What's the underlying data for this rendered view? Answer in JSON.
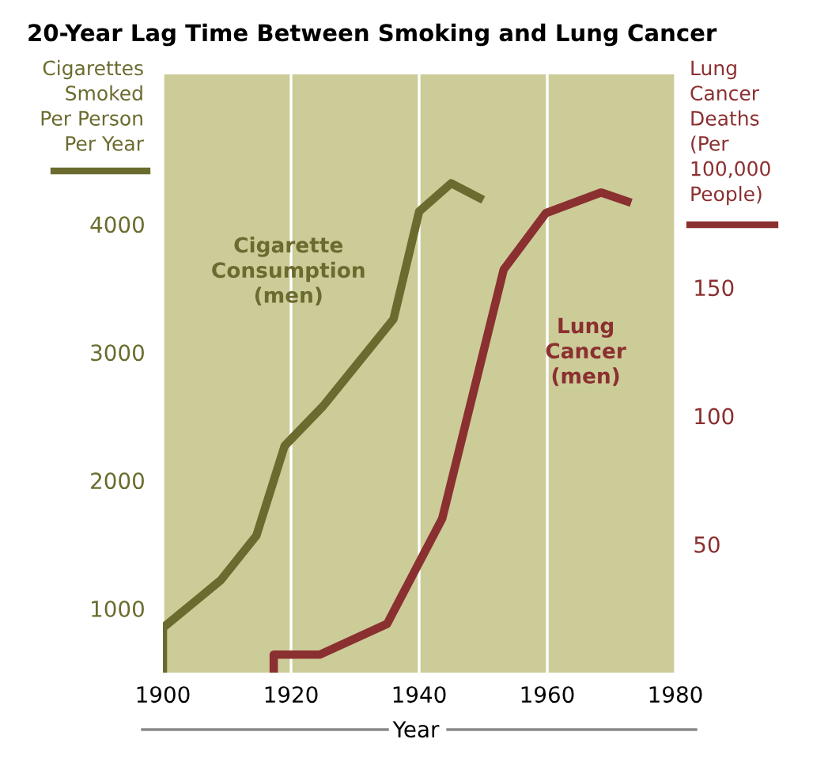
{
  "chart_data": {
    "type": "line",
    "title": "20-Year Lag Time Between Smoking and Lung Cancer",
    "xlabel": "Year",
    "ylabel": "Cigarettes Smoked Per Person Per Year",
    "y2label": "Lung Cancer Deaths (Per 100,000 People)",
    "series": [
      {
        "name": "Cigarette Consumption (men)",
        "color": "#6b6b2f",
        "x": [
          1900,
          1900,
          1909,
          1914.6,
          1919,
          1925,
          1936,
          1940,
          1945,
          1950
        ],
        "values": [
          500,
          850,
          1220,
          1570,
          2270,
          2580,
          3260,
          4100,
          4320,
          4190
        ]
      },
      {
        "name": "Lung Cancer (men)",
        "color": "#8b3030",
        "axis": "y2",
        "x": [
          1917.3,
          1917.3,
          1924.5,
          1935,
          1943.6,
          1953.2,
          1959.8,
          1968.4,
          1973.1
        ],
        "values": [
          0,
          7,
          7,
          19,
          60,
          157,
          179,
          187,
          183
        ]
      }
    ],
    "xlim": [
      1900,
      1980
    ],
    "xticks": [
      1900,
      1920,
      1940,
      1960,
      1980
    ],
    "ylim": [
      500,
      5170
    ],
    "yticks": [
      1000,
      2000,
      3000,
      4000
    ],
    "y2lim": [
      0,
      233
    ],
    "y2ticks": [
      50,
      100,
      150
    ],
    "grid": "x",
    "legend": false,
    "marker": "none",
    "line_style": "solid"
  }
}
